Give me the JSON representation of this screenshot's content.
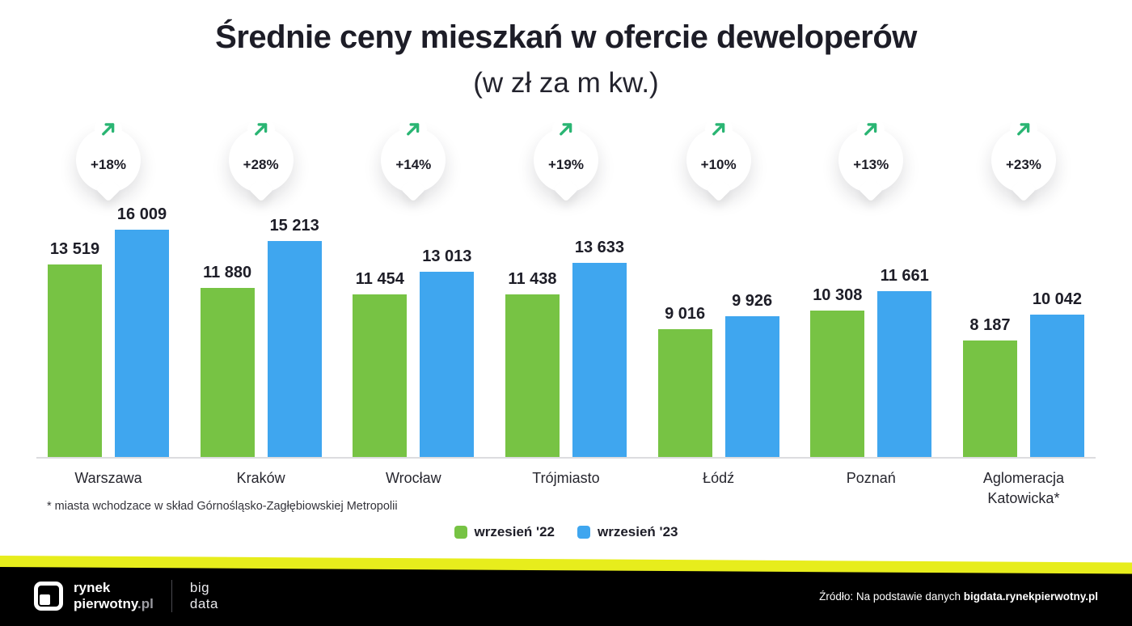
{
  "chart_data": {
    "type": "bar",
    "title": "Średnie ceny mieszkań w ofercie deweloperów",
    "subtitle": "(w zł za m kw.)",
    "categories": [
      "Warszawa",
      "Kraków",
      "Wrocław",
      "Trójmiasto",
      "Łódź",
      "Poznań",
      "Aglomeracja Katowicka*"
    ],
    "series": [
      {
        "name": "wrzesień '22",
        "color": "#77c344",
        "values": [
          13519,
          11880,
          11454,
          11438,
          9016,
          10308,
          8187
        ]
      },
      {
        "name": "wrzesień '23",
        "color": "#3fa6ef",
        "values": [
          16009,
          15213,
          13013,
          13633,
          9926,
          11661,
          10042
        ]
      }
    ],
    "percent_change": [
      "+18%",
      "+28%",
      "+14%",
      "+19%",
      "+10%",
      "+13%",
      "+23%"
    ],
    "ylim": [
      0,
      16500
    ],
    "grid": false,
    "legend_position": "bottom",
    "footnote": "* miasta wchodzace w skład Górnośląsko-Zagłębiowskiej Metropolii"
  },
  "footer": {
    "logo_line1": "rynek",
    "logo_line2": "pierwotny",
    "logo_tld": ".pl",
    "partner_line1": "big",
    "partner_line2": "data",
    "source_prefix": "Źródło: Na podstawie danych ",
    "source_bold": "bigdata.rynekpierwotny.pl"
  },
  "colors": {
    "series1_green": "#77c344",
    "series2_blue": "#3fa6ef",
    "trend_arrow_green": "#2ab573",
    "accent_strip_yellow": "#e7ed1c",
    "footer_black": "#000000",
    "text_dark": "#1e1e28"
  }
}
